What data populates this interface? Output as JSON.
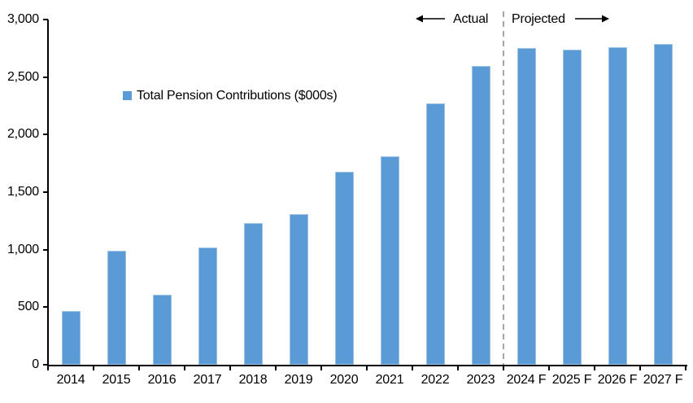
{
  "chart_data": {
    "type": "bar",
    "title": "",
    "legend": "Total Pension Contributions ($000s)",
    "legend_position": "inside-upper-left",
    "categories": [
      "2014",
      "2015",
      "2016",
      "2017",
      "2018",
      "2019",
      "2020",
      "2021",
      "2022",
      "2023",
      "2024 F",
      "2025 F",
      "2026 F",
      "2027 F"
    ],
    "values": [
      470,
      990,
      610,
      1020,
      1230,
      1310,
      1680,
      1810,
      2270,
      2600,
      2750,
      2740,
      2760,
      2790
    ],
    "xlabel": "",
    "ylabel": "",
    "ylim": [
      0,
      3000
    ],
    "ytick_interval": 500,
    "ytick_labels": [
      "0",
      "500",
      "1,000",
      "1,500",
      "2,000",
      "2,500",
      "3,000"
    ],
    "grid": false,
    "annotations": {
      "actual_label": "Actual",
      "projected_label": "Projected",
      "divider_boundary_index": 10
    },
    "colors": {
      "bar": "#5B9BD5",
      "bar_edge": "#9DC3E6",
      "divider": "#A6A6A6",
      "axis": "#000000",
      "text": "#000000"
    }
  }
}
